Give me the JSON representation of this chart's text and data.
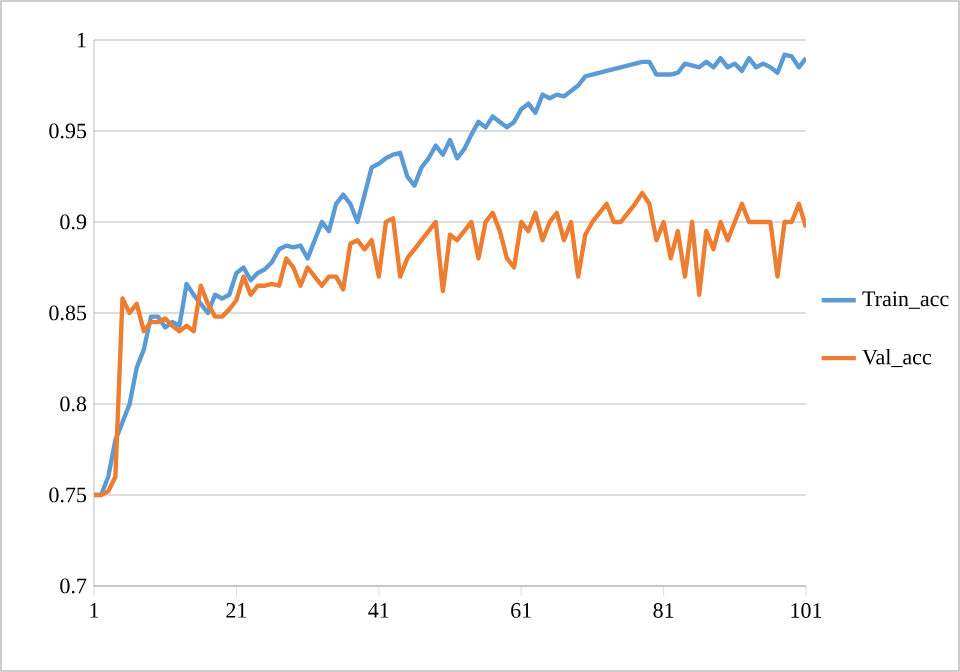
{
  "chart_data": {
    "type": "line",
    "x": [
      1,
      2,
      3,
      4,
      5,
      6,
      7,
      8,
      9,
      10,
      11,
      12,
      13,
      14,
      15,
      16,
      17,
      18,
      19,
      20,
      21,
      22,
      23,
      24,
      25,
      26,
      27,
      28,
      29,
      30,
      31,
      32,
      33,
      34,
      35,
      36,
      37,
      38,
      39,
      40,
      41,
      42,
      43,
      44,
      45,
      46,
      47,
      48,
      49,
      50,
      51,
      52,
      53,
      54,
      55,
      56,
      57,
      58,
      59,
      60,
      61,
      62,
      63,
      64,
      65,
      66,
      67,
      68,
      69,
      70,
      71,
      72,
      73,
      74,
      75,
      76,
      77,
      78,
      79,
      80,
      81,
      82,
      83,
      84,
      85,
      86,
      87,
      88,
      89,
      90,
      91,
      92,
      93,
      94,
      95,
      96,
      97,
      98,
      99,
      100,
      101
    ],
    "series": [
      {
        "name": "Train_acc",
        "color": "#5b9bd5",
        "values": [
          0.75,
          0.75,
          0.76,
          0.78,
          0.79,
          0.8,
          0.82,
          0.83,
          0.848,
          0.848,
          0.842,
          0.845,
          0.843,
          0.866,
          0.86,
          0.855,
          0.85,
          0.86,
          0.858,
          0.86,
          0.872,
          0.875,
          0.868,
          0.872,
          0.874,
          0.878,
          0.885,
          0.887,
          0.886,
          0.887,
          0.88,
          0.89,
          0.9,
          0.895,
          0.91,
          0.915,
          0.91,
          0.9,
          0.915,
          0.93,
          0.932,
          0.935,
          0.937,
          0.938,
          0.925,
          0.92,
          0.93,
          0.935,
          0.942,
          0.937,
          0.945,
          0.935,
          0.94,
          0.948,
          0.955,
          0.952,
          0.958,
          0.955,
          0.952,
          0.955,
          0.962,
          0.965,
          0.96,
          0.97,
          0.968,
          0.97,
          0.969,
          0.972,
          0.975,
          0.98,
          0.981,
          0.982,
          0.983,
          0.984,
          0.985,
          0.986,
          0.987,
          0.988,
          0.988,
          0.981,
          0.981,
          0.981,
          0.982,
          0.987,
          0.986,
          0.985,
          0.988,
          0.985,
          0.99,
          0.985,
          0.987,
          0.983,
          0.99,
          0.985,
          0.987,
          0.985,
          0.982,
          0.992,
          0.991,
          0.985,
          0.99
        ]
      },
      {
        "name": "Val_acc",
        "color": "#ed7d31",
        "values": [
          0.75,
          0.75,
          0.752,
          0.76,
          0.858,
          0.85,
          0.855,
          0.84,
          0.845,
          0.845,
          0.847,
          0.843,
          0.84,
          0.843,
          0.84,
          0.865,
          0.855,
          0.848,
          0.848,
          0.852,
          0.857,
          0.87,
          0.86,
          0.865,
          0.865,
          0.866,
          0.865,
          0.88,
          0.875,
          0.865,
          0.875,
          0.87,
          0.865,
          0.87,
          0.87,
          0.863,
          0.888,
          0.89,
          0.885,
          0.89,
          0.87,
          0.9,
          0.902,
          0.87,
          0.88,
          0.885,
          0.89,
          0.895,
          0.9,
          0.862,
          0.893,
          0.89,
          0.895,
          0.9,
          0.88,
          0.9,
          0.905,
          0.895,
          0.88,
          0.875,
          0.9,
          0.895,
          0.905,
          0.89,
          0.9,
          0.905,
          0.89,
          0.9,
          0.87,
          0.893,
          0.9,
          0.905,
          0.91,
          0.9,
          0.9,
          0.905,
          0.91,
          0.916,
          0.91,
          0.89,
          0.9,
          0.88,
          0.895,
          0.87,
          0.9,
          0.86,
          0.895,
          0.885,
          0.9,
          0.89,
          0.9,
          0.91,
          0.9,
          0.9,
          0.9,
          0.9,
          0.87,
          0.9,
          0.9,
          0.91,
          0.897
        ]
      }
    ],
    "xlim": [
      1,
      101
    ],
    "xticks": [
      1,
      21,
      41,
      61,
      81,
      101
    ],
    "ylim": [
      0.7,
      1
    ],
    "yticks": [
      0.7,
      0.75,
      0.8,
      0.85,
      0.9,
      0.95,
      1
    ],
    "grid": "y",
    "legend": "right",
    "marker": "none",
    "line_style": "solid"
  }
}
